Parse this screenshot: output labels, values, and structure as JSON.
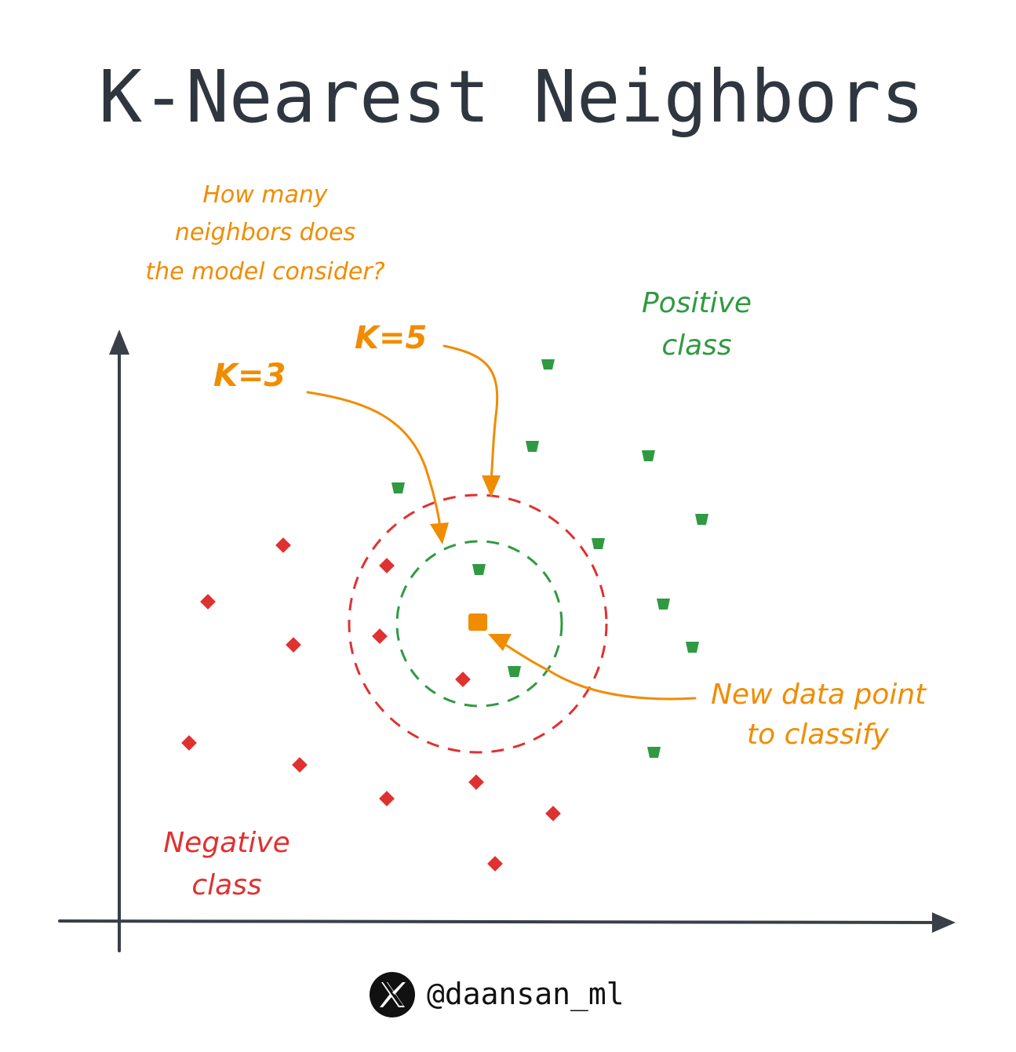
{
  "title": "K-Nearest Neighbors",
  "question": {
    "lines": [
      "How many",
      "neighbors does",
      "the model consider?"
    ]
  },
  "k_labels": {
    "k3": "K=3",
    "k5": "K=5"
  },
  "class_labels": {
    "positive": [
      "Positive",
      "class"
    ],
    "negative": [
      "Negative",
      "class"
    ]
  },
  "new_point_label": [
    "New data point",
    "to classify"
  ],
  "footer": {
    "handle": "@daansan_ml",
    "icon": "x-logo-icon"
  },
  "colors": {
    "title": "#2f3640",
    "axis": "#3a3f47",
    "positive": "#2f9a41",
    "negative": "#e03131",
    "new_point": "#f08c00",
    "annotation": "#f08c00",
    "k3_circle": "#2f9a41",
    "k5_circle": "#e03131"
  }
}
